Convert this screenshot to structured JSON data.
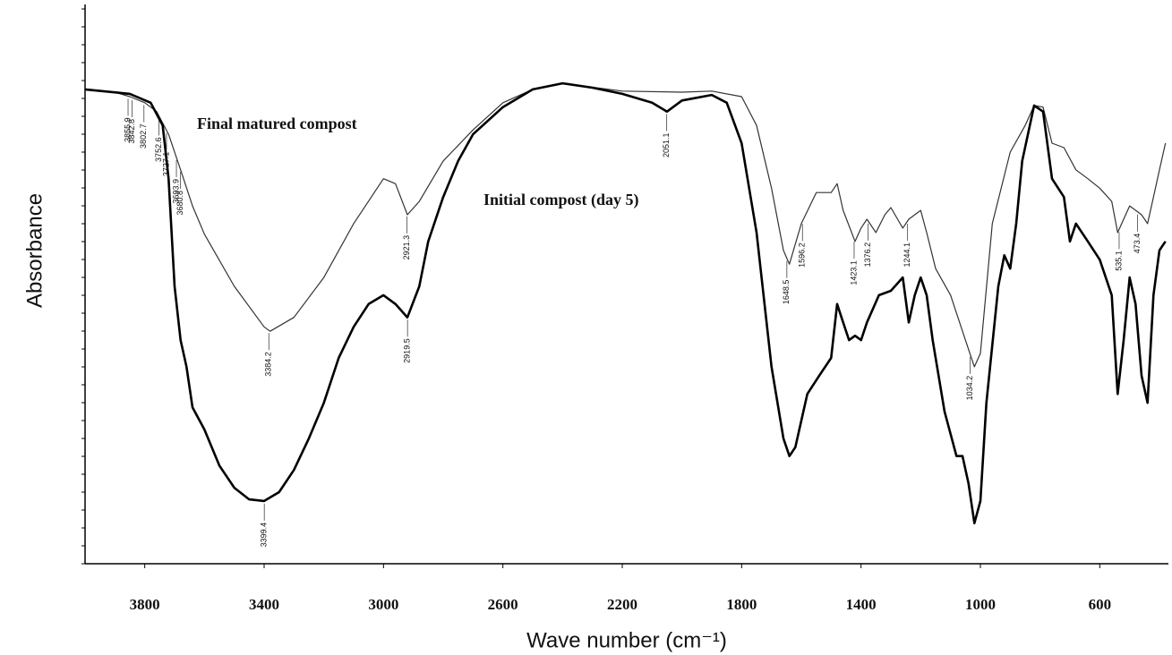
{
  "chart_data": {
    "type": "line",
    "x_label": "Wave number (cm⁻¹)",
    "y_label": "Absorbance",
    "xlim": [
      4000,
      370
    ],
    "ylim": [
      0,
      100
    ],
    "xticks": [
      3800,
      3400,
      3000,
      2600,
      2200,
      1800,
      1400,
      1000,
      600
    ],
    "series": [
      {
        "name": "Final matured compost",
        "color": "#333333",
        "x": [
          4000,
          3900,
          3850,
          3800,
          3760,
          3720,
          3680,
          3640,
          3600,
          3500,
          3400,
          3380,
          3300,
          3200,
          3100,
          3000,
          2960,
          2920,
          2880,
          2800,
          2700,
          2600,
          2500,
          2400,
          2200,
          2000,
          1900,
          1800,
          1750,
          1700,
          1660,
          1640,
          1600,
          1550,
          1500,
          1480,
          1460,
          1420,
          1400,
          1380,
          1350,
          1320,
          1300,
          1260,
          1240,
          1220,
          1200,
          1180,
          1150,
          1100,
          1050,
          1020,
          1000,
          960,
          900,
          850,
          820,
          790,
          760,
          720,
          680,
          640,
          600,
          560,
          540,
          500,
          460,
          440,
          420,
          400,
          380
        ],
        "values": [
          85.5,
          85.0,
          84.2,
          83.1,
          81.5,
          77.4,
          71.0,
          64.5,
          59.4,
          50.0,
          42.7,
          41.9,
          44.4,
          51.6,
          61.3,
          69.4,
          68.5,
          62.9,
          65.3,
          72.6,
          78.2,
          83.1,
          85.5,
          86.6,
          85.2,
          85.0,
          85.2,
          84.2,
          79.0,
          67.7,
          56.5,
          54.0,
          61.3,
          66.9,
          66.9,
          68.5,
          63.7,
          58.1,
          60.5,
          62.1,
          59.7,
          62.9,
          64.2,
          60.5,
          62.1,
          62.9,
          63.7,
          59.7,
          53.2,
          48.4,
          40.3,
          35.5,
          37.9,
          61.3,
          74.2,
          79.0,
          82.6,
          82.3,
          75.8,
          75.0,
          71.0,
          69.4,
          67.7,
          65.3,
          59.7,
          64.5,
          62.9,
          61.3,
          66.1,
          71.0,
          75.8
        ],
        "peaks": [
          3855.9,
          3842.8,
          3802.7,
          3752.6,
          3727.1,
          3693.9,
          3680.8,
          3384.2,
          2921.3,
          1648.5,
          1596.2,
          1423.1,
          1376.2,
          1244.1,
          1034.2,
          535.1,
          473.4
        ]
      },
      {
        "name": "Initial compost (day 5)",
        "color": "#000000",
        "x": [
          4000,
          3850,
          3780,
          3740,
          3720,
          3700,
          3680,
          3660,
          3640,
          3600,
          3550,
          3500,
          3450,
          3400,
          3350,
          3300,
          3250,
          3200,
          3150,
          3100,
          3050,
          3000,
          2960,
          2920,
          2880,
          2850,
          2800,
          2750,
          2700,
          2600,
          2500,
          2400,
          2300,
          2200,
          2100,
          2050,
          2000,
          1900,
          1850,
          1800,
          1750,
          1700,
          1660,
          1640,
          1620,
          1580,
          1540,
          1500,
          1480,
          1460,
          1440,
          1420,
          1400,
          1380,
          1340,
          1300,
          1260,
          1240,
          1220,
          1200,
          1180,
          1160,
          1120,
          1080,
          1060,
          1040,
          1020,
          1000,
          980,
          940,
          920,
          900,
          880,
          860,
          820,
          790,
          760,
          720,
          700,
          680,
          640,
          600,
          560,
          540,
          520,
          500,
          480,
          460,
          440,
          420,
          400,
          380
        ],
        "values": [
          85.5,
          84.7,
          83.1,
          79.0,
          69.4,
          50.0,
          40.3,
          35.5,
          28.2,
          24.2,
          17.7,
          13.7,
          11.6,
          11.3,
          12.9,
          16.9,
          22.6,
          29.0,
          37.1,
          42.7,
          46.8,
          48.4,
          46.8,
          44.4,
          50.0,
          58.1,
          66.1,
          72.6,
          77.4,
          82.3,
          85.5,
          86.6,
          85.8,
          84.7,
          83.1,
          81.5,
          83.5,
          84.5,
          83.1,
          75.8,
          59.7,
          35.5,
          22.6,
          19.4,
          21.0,
          30.6,
          33.9,
          37.1,
          46.8,
          43.5,
          40.3,
          41.1,
          40.3,
          43.5,
          48.4,
          49.2,
          51.6,
          43.5,
          48.4,
          51.6,
          48.4,
          40.3,
          27.4,
          19.4,
          19.4,
          14.5,
          7.3,
          11.3,
          29.0,
          50.0,
          55.6,
          53.2,
          61.3,
          72.6,
          82.6,
          81.5,
          69.4,
          66.1,
          58.1,
          61.3,
          58.1,
          54.8,
          48.4,
          30.6,
          40.3,
          51.6,
          46.8,
          33.9,
          29.0,
          48.4,
          56.5,
          58.1
        ],
        "peaks": [
          3399.4,
          2919.5,
          2051.1
        ]
      }
    ]
  }
}
